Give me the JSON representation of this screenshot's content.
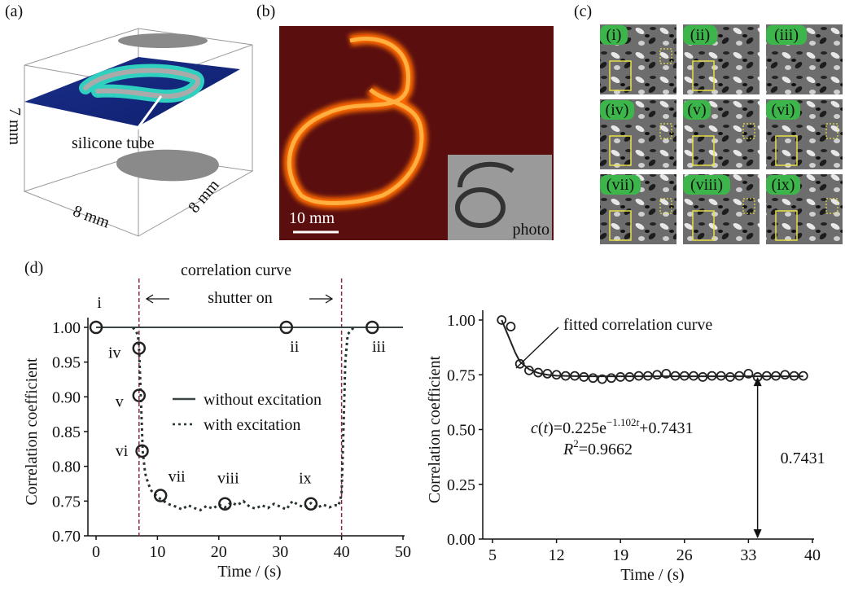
{
  "panels": {
    "a": {
      "label": "(a)",
      "annotation": "silicone tube",
      "z_axis": "7 mm",
      "x_axis": "8 mm",
      "y_axis": "8 mm"
    },
    "b": {
      "label": "(b)",
      "scale_bar": "10 mm",
      "inset": "photo"
    },
    "c": {
      "label": "(c)",
      "tiles": [
        "(i)",
        "(ii)",
        "(iii)",
        "(iv)",
        "(v)",
        "(vi)",
        "(vii)",
        "(viii)",
        "(ix)"
      ]
    },
    "d": {
      "label": "(d)"
    }
  },
  "chart_data": [
    {
      "type": "line",
      "title": "correlation curve",
      "annotation": "shutter on",
      "x_label": "Time / (s)",
      "y_label": "Correlation coefficient",
      "xlim": [
        0,
        50
      ],
      "xticks": [
        0,
        10,
        20,
        30,
        40,
        50
      ],
      "ylim": [
        0.7,
        1.0
      ],
      "yticks": [
        {
          "value": 0.7,
          "label": "0.70"
        },
        0.75,
        {
          "value": 0.8,
          "label": "0.80"
        },
        0.85,
        {
          "value": 0.9,
          "label": "0.90"
        },
        0.95,
        {
          "value": 1.0,
          "label": "1.00"
        }
      ],
      "vlines": [
        7,
        40
      ],
      "series": [
        {
          "name": "without excitation",
          "color": "#3a4646",
          "style": "solid",
          "x": [
            0,
            10,
            20,
            30,
            40,
            50
          ],
          "values": [
            1,
            1,
            1,
            1,
            1,
            1
          ]
        },
        {
          "name": "with excitation",
          "color": "#2a3434",
          "style": "dashed",
          "x": [
            6,
            6.8,
            7,
            7.3,
            7.6,
            8,
            8.5,
            9,
            10,
            11,
            12,
            13,
            14,
            15,
            16,
            17,
            18,
            19,
            20,
            21,
            22,
            23,
            24,
            25,
            26,
            27,
            28,
            29,
            30,
            31,
            32,
            33,
            34,
            35,
            36,
            37,
            38,
            39,
            39.5,
            40,
            40.3,
            40.6,
            41,
            42
          ],
          "values": [
            1,
            0.99,
            0.97,
            0.9,
            0.822,
            0.79,
            0.775,
            0.765,
            0.756,
            0.75,
            0.745,
            0.742,
            0.738,
            0.744,
            0.74,
            0.737,
            0.743,
            0.739,
            0.745,
            0.741,
            0.748,
            0.744,
            0.75,
            0.742,
            0.739,
            0.744,
            0.74,
            0.746,
            0.742,
            0.738,
            0.75,
            0.744,
            0.741,
            0.747,
            0.74,
            0.745,
            0.741,
            0.744,
            0.743,
            0.76,
            0.85,
            0.95,
            0.99,
            1.0
          ]
        }
      ],
      "markers": {
        "labels": [
          "i",
          "ii",
          "iii",
          "iv",
          "v",
          "vi",
          "vii",
          "viii",
          "ix"
        ],
        "x": [
          0,
          31,
          45,
          7,
          7,
          7.5,
          10.5,
          21,
          35
        ],
        "values": [
          1,
          1,
          1,
          0.97,
          0.902,
          0.822,
          0.758,
          0.746,
          0.746
        ]
      }
    },
    {
      "type": "line",
      "x_label": "Time / (s)",
      "y_label": "Correlation coefficient",
      "xlim": [
        5,
        40
      ],
      "xticks": [
        5,
        12,
        19,
        26,
        33,
        40
      ],
      "ylim": [
        0,
        1
      ],
      "yticks": [
        {
          "value": 0,
          "label": "0.00"
        },
        0.25,
        {
          "value": 0.5,
          "label": "0.50"
        },
        0.75,
        {
          "value": 1,
          "label": "1.00"
        }
      ],
      "series": [
        {
          "name": "fitted correlation curve",
          "color": "#222222",
          "style": "solid",
          "x": [
            6,
            6.5,
            7,
            7.5,
            8,
            9,
            10,
            11,
            12,
            14,
            16,
            18,
            20,
            25,
            30,
            35,
            39
          ],
          "values": [
            1,
            0.95,
            0.9,
            0.85,
            0.81,
            0.775,
            0.758,
            0.75,
            0.746,
            0.744,
            0.743,
            0.743,
            0.7431,
            0.7431,
            0.7431,
            0.7431,
            0.7431
          ]
        }
      ],
      "points": {
        "x": [
          6,
          7,
          8,
          9,
          10,
          11,
          12,
          13,
          14,
          15,
          16,
          17,
          18,
          19,
          20,
          21,
          22,
          23,
          24,
          25,
          26,
          27,
          28,
          29,
          30,
          31,
          32,
          33,
          34,
          35,
          36,
          37,
          38,
          39
        ],
        "values": [
          1,
          0.97,
          0.8,
          0.77,
          0.76,
          0.755,
          0.75,
          0.745,
          0.745,
          0.74,
          0.735,
          0.73,
          0.735,
          0.74,
          0.74,
          0.745,
          0.745,
          0.75,
          0.755,
          0.745,
          0.745,
          0.745,
          0.74,
          0.745,
          0.745,
          0.74,
          0.745,
          0.755,
          0.74,
          0.745,
          0.745,
          0.75,
          0.745,
          0.745
        ]
      },
      "equation": [
        "c",
        "(",
        "t",
        ")=0.225e",
        "−1.102",
        "t",
        "+0.7431"
      ],
      "r2": [
        "R",
        "2",
        "=0.9662"
      ],
      "asymptote": 0.7431,
      "asymptote_x": 34
    }
  ]
}
